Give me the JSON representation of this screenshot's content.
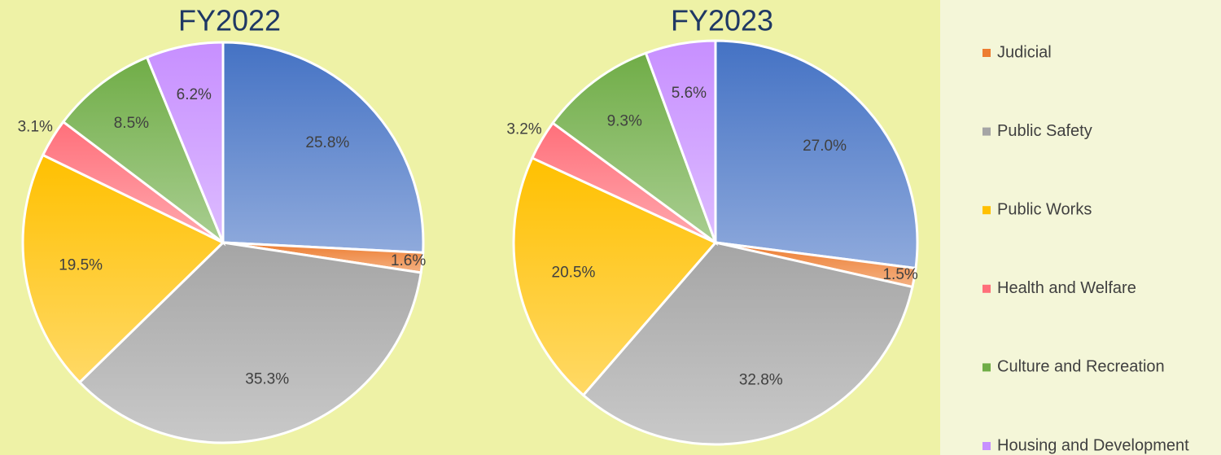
{
  "chart_data": [
    {
      "type": "pie",
      "title": "FY2022",
      "categories": [
        null,
        "Judicial",
        "Public Safety",
        "Public Works",
        "Health and Welfare",
        "Culture and Recreation",
        "Housing and Development"
      ],
      "values": [
        25.8,
        1.6,
        35.3,
        19.5,
        3.1,
        8.5,
        6.2
      ],
      "value_labels": [
        "25.8%",
        "1.6%",
        "35.3%",
        "19.5%",
        "3.1%",
        "8.5%",
        "6.2%"
      ],
      "colors": [
        "#4472c4",
        "#ed7d31",
        "#a5a5a5",
        "#ffc000",
        "#ff6f7a",
        "#70ad47",
        "#c78fff"
      ]
    },
    {
      "type": "pie",
      "title": "FY2023",
      "categories": [
        null,
        "Judicial",
        "Public Safety",
        "Public Works",
        "Health and Welfare",
        "Culture and Recreation",
        "Housing and Development"
      ],
      "values": [
        27.0,
        1.5,
        32.8,
        20.5,
        3.2,
        9.3,
        5.6
      ],
      "value_labels": [
        "27.0%",
        "1.5%",
        "32.8%",
        "20.5%",
        "3.2%",
        "9.3%",
        "5.6%"
      ],
      "colors": [
        "#4472c4",
        "#ed7d31",
        "#a5a5a5",
        "#ffc000",
        "#ff6f7a",
        "#70ad47",
        "#c78fff"
      ]
    }
  ]
}
